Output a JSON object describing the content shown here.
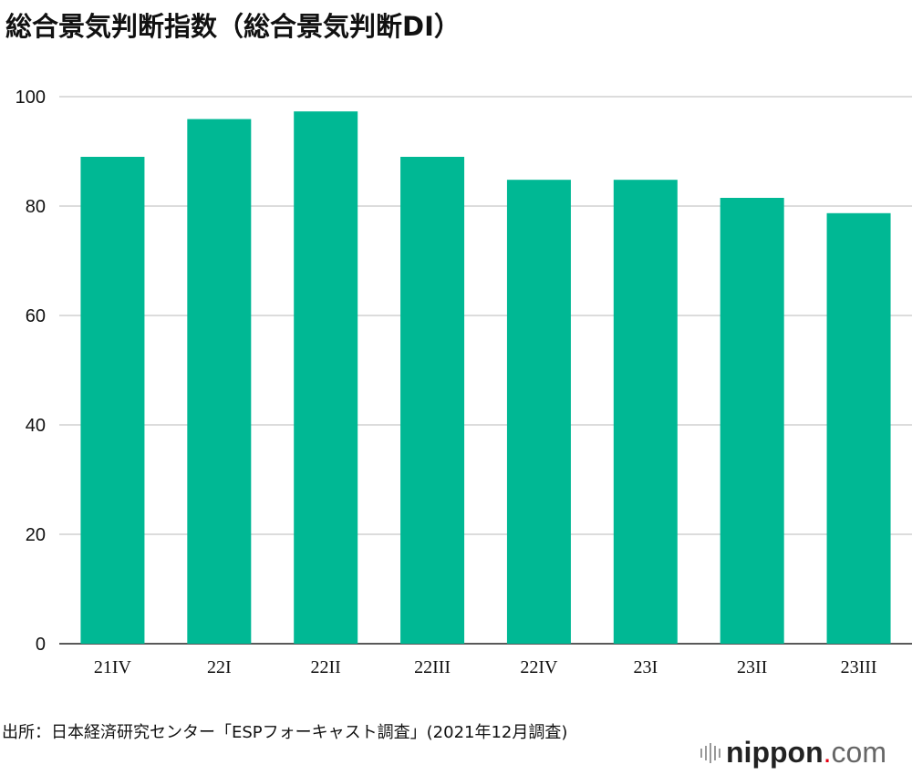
{
  "chart_data": {
    "type": "bar",
    "title": "総合景気判断指数（総合景気判断DI）",
    "categories": [
      "21IV",
      "22I",
      "22II",
      "22III",
      "22IV",
      "23I",
      "23II",
      "23III"
    ],
    "values": [
      89.0,
      95.9,
      97.3,
      89.0,
      84.8,
      84.8,
      81.5,
      78.7
    ],
    "xlabel": "",
    "ylabel": "",
    "ylim": [
      0,
      100
    ],
    "yticks": [
      0,
      20,
      40,
      60,
      80,
      100
    ],
    "grid": true,
    "bar_color": "#00b894"
  },
  "source": "出所：日本経済研究センター「ESPフォーキャスト調査」(2021年12月調査)",
  "logo": {
    "name": "nippon",
    "dot": ".",
    "suffix": "com"
  }
}
